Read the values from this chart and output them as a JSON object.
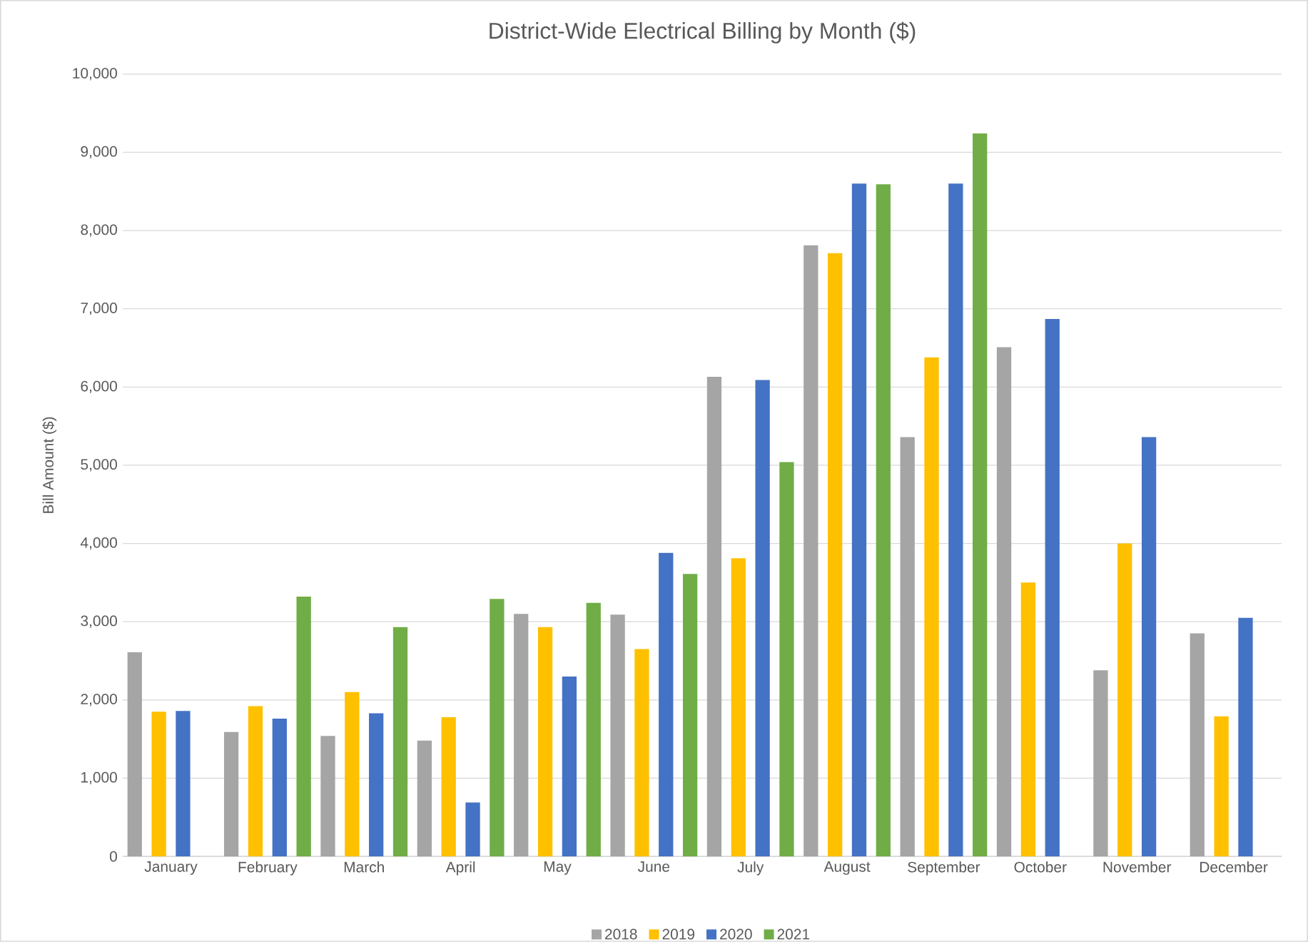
{
  "chart_data": {
    "type": "bar",
    "title": "District-Wide Electrical Billing by Month ($)",
    "ylabel": "Bill Amount ($)",
    "categories": [
      "January",
      "February",
      "March",
      "April",
      "May",
      "June",
      "July",
      "August",
      "September",
      "October",
      "November",
      "December"
    ],
    "series": [
      {
        "name": "2018",
        "color": "#a5a5a5",
        "values": [
          2610,
          1590,
          1540,
          1480,
          3100,
          3090,
          6130,
          7810,
          5360,
          6510,
          2380,
          2850
        ]
      },
      {
        "name": "2019",
        "color": "#ffc000",
        "values": [
          1850,
          1920,
          2100,
          1780,
          2930,
          2650,
          3810,
          7710,
          6380,
          3500,
          4000,
          1790
        ]
      },
      {
        "name": "2020",
        "color": "#4472c4",
        "values": [
          1860,
          1760,
          1830,
          690,
          2300,
          3880,
          6090,
          8600,
          8600,
          6870,
          5360,
          3050
        ]
      },
      {
        "name": "2021",
        "color": "#70ad47",
        "values": [
          null,
          3320,
          2930,
          3290,
          3240,
          3610,
          5040,
          8590,
          9240,
          null,
          null,
          null
        ]
      }
    ],
    "ylim": [
      0,
      10000
    ],
    "yticks": [
      0,
      {
        "value": 1000,
        "label": "1,000"
      },
      {
        "value": 2000,
        "label": "2,000"
      },
      {
        "value": 3000,
        "label": "3,000"
      },
      {
        "value": 4000,
        "label": "4,000"
      },
      {
        "value": 5000,
        "label": "5,000"
      },
      {
        "value": 6000,
        "label": "6,000"
      },
      {
        "value": 7000,
        "label": "7,000"
      },
      {
        "value": 8000,
        "label": "8,000"
      },
      {
        "value": 9000,
        "label": "9,000"
      },
      {
        "value": 10000,
        "label": "10,000"
      }
    ],
    "grid": "y",
    "legend": "bottom"
  }
}
